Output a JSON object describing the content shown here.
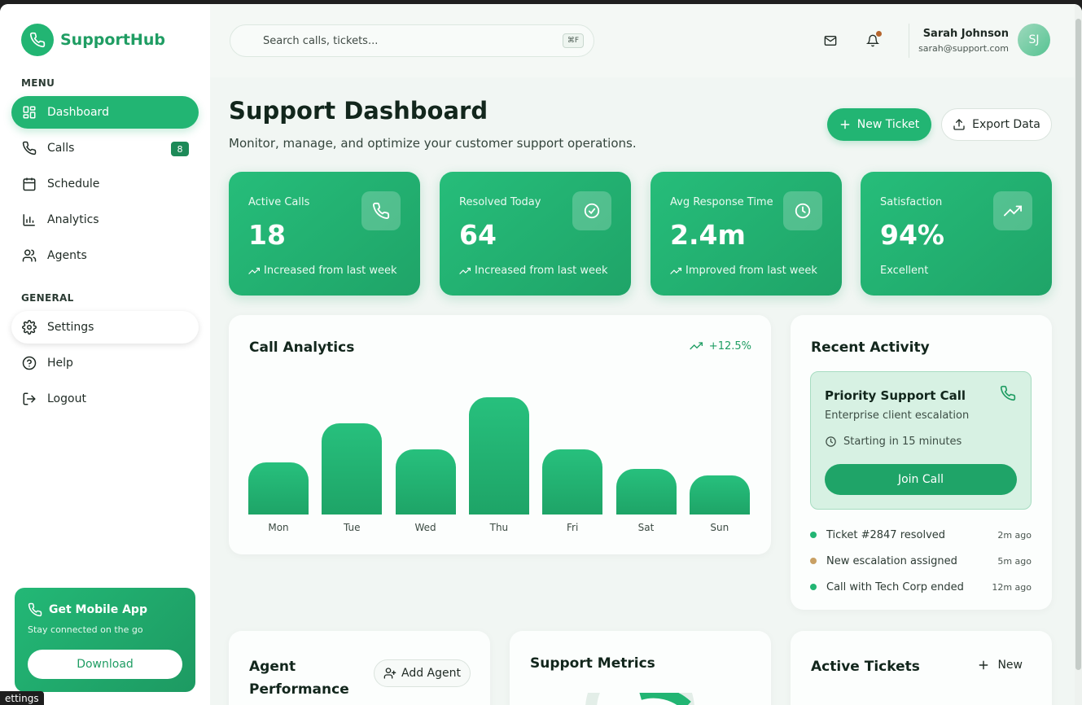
{
  "brand": {
    "name": "SupportHub"
  },
  "sidebar": {
    "menu_label": "MENU",
    "general_label": "GENERAL",
    "menu_items": [
      {
        "label": "Dashboard"
      },
      {
        "label": "Calls",
        "badge": "8"
      },
      {
        "label": "Schedule"
      },
      {
        "label": "Analytics"
      },
      {
        "label": "Agents"
      }
    ],
    "general_items": [
      {
        "label": "Settings"
      },
      {
        "label": "Help"
      },
      {
        "label": "Logout"
      }
    ],
    "promo": {
      "title": "Get Mobile App",
      "subtitle": "Stay connected on the go",
      "button": "Download"
    },
    "tooltip": "ettings"
  },
  "topbar": {
    "search_placeholder": "Search calls, tickets...",
    "search_shortcut": "⌘F",
    "user": {
      "name": "Sarah Johnson",
      "email": "sarah@support.com",
      "initials": "SJ"
    }
  },
  "header": {
    "title": "Support Dashboard",
    "subtitle": "Monitor, manage, and optimize your customer support operations.",
    "new_ticket": "New Ticket",
    "export": "Export Data"
  },
  "stats": [
    {
      "label": "Active Calls",
      "value": "18",
      "foot": "Increased from last week",
      "icon": "phone-icon"
    },
    {
      "label": "Resolved Today",
      "value": "64",
      "foot": "Increased from last week",
      "icon": "check-circle-icon"
    },
    {
      "label": "Avg Response Time",
      "value": "2.4m",
      "foot": "Improved from last week",
      "icon": "clock-icon"
    },
    {
      "label": "Satisfaction",
      "value": "94%",
      "foot": "Excellent",
      "icon": "trend-up-icon"
    }
  ],
  "call_analytics": {
    "title": "Call Analytics",
    "trend": "+12.5%"
  },
  "chart_data": {
    "type": "bar",
    "categories": [
      "Mon",
      "Tue",
      "Wed",
      "Thu",
      "Fri",
      "Sat",
      "Sun"
    ],
    "values": [
      40,
      70,
      50,
      90,
      50,
      35,
      30
    ],
    "ylim": [
      0,
      100
    ],
    "grid": false,
    "title": "Call Analytics",
    "color": "#22b573"
  },
  "recent_activity": {
    "title": "Recent Activity",
    "priority": {
      "title": "Priority Support Call",
      "subtitle": "Enterprise client escalation",
      "time": "Starting in 15 minutes",
      "button": "Join Call"
    },
    "items": [
      {
        "text": "Ticket #2847 resolved",
        "time": "2m ago",
        "color": "#22b573"
      },
      {
        "text": "New escalation assigned",
        "time": "5m ago",
        "color": "#c9a064"
      },
      {
        "text": "Call with Tech Corp ended",
        "time": "12m ago",
        "color": "#22b573"
      }
    ]
  },
  "agent_performance": {
    "title_line1": "Agent",
    "title_line2": "Performance",
    "add_button": "Add Agent"
  },
  "support_metrics": {
    "title": "Support Metrics"
  },
  "active_tickets": {
    "title": "Active Tickets",
    "new_label": "New"
  },
  "colors": {
    "accent": "#22b573",
    "accent_dark": "#1fa468",
    "background": "#f1f6f3"
  }
}
